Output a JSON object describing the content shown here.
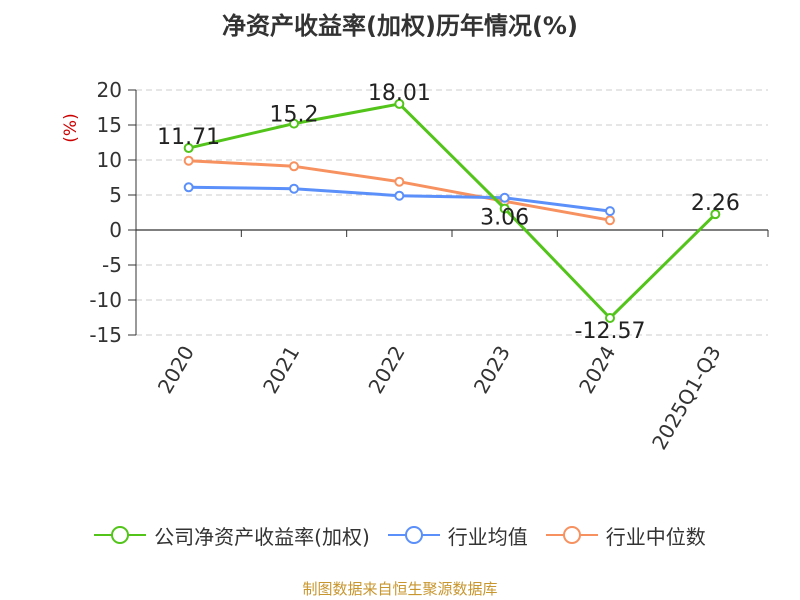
{
  "title": "净资产收益率(加权)历年情况(%)",
  "source": "制图数据来自恒生聚源数据库",
  "chart_data": {
    "type": "line",
    "title": "净资产收益率(加权)历年情况(%)",
    "ylabel": "(%)",
    "ylim": [
      -15,
      20
    ],
    "yticks": [
      20,
      15,
      10,
      5,
      0,
      -5,
      -10,
      -15
    ],
    "categories": [
      "2020",
      "2021",
      "2022",
      "2023",
      "2024",
      "2025Q1-Q3"
    ],
    "grid": true,
    "legend_position": "bottom",
    "series": [
      {
        "name": "公司净资产收益率(加权)",
        "color": "#52c41a",
        "values": [
          11.71,
          15.2,
          18.01,
          3.06,
          -12.57,
          2.26
        ],
        "show_labels": true
      },
      {
        "name": "行业均值",
        "color": "#5b8ff9",
        "values": [
          6.1,
          5.9,
          4.9,
          4.6,
          2.7,
          null
        ],
        "show_labels": false
      },
      {
        "name": "行业中位数",
        "color": "#f7915f",
        "values": [
          9.9,
          9.1,
          6.9,
          4.1,
          1.4,
          null
        ],
        "show_labels": false
      }
    ],
    "data_labels": [
      "11.71",
      "15.2",
      "18.01",
      "3.06",
      "-12.57",
      "2.26"
    ]
  }
}
